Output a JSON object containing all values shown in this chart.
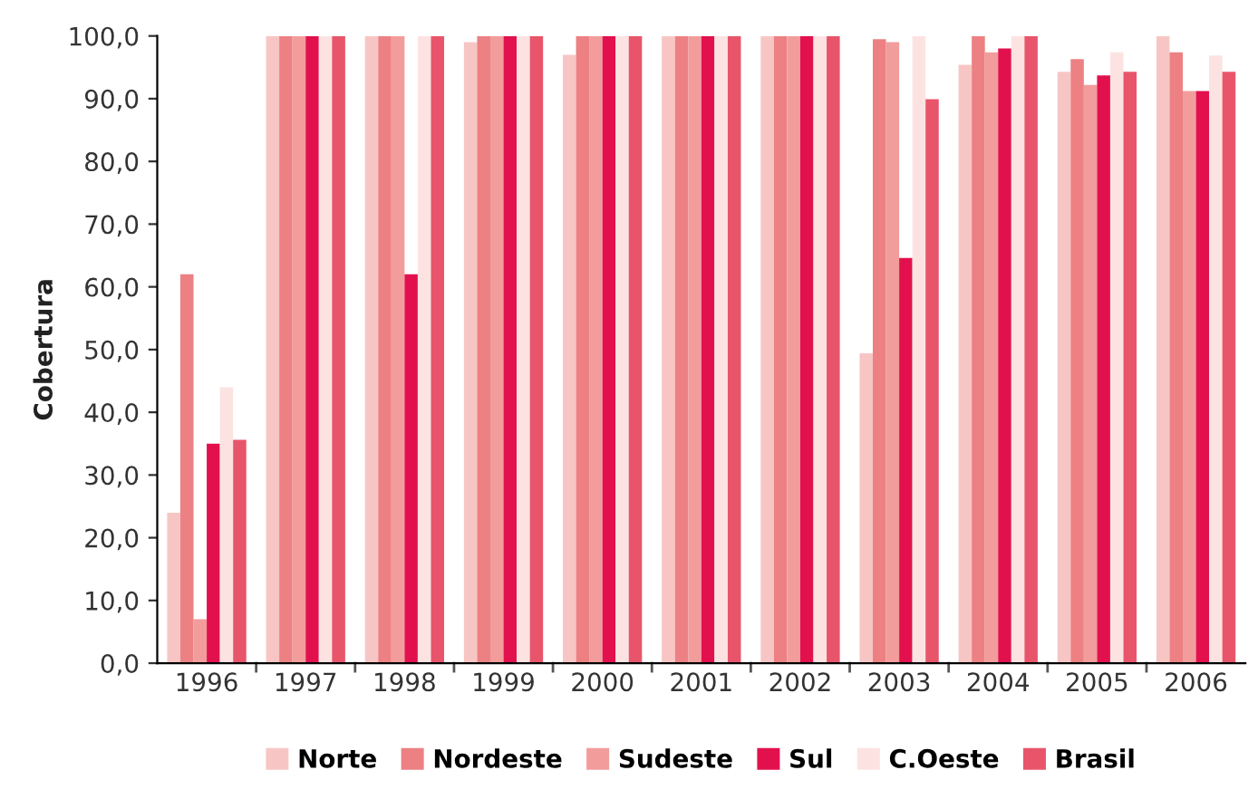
{
  "chart_data": {
    "type": "bar",
    "ylabel": "Cobertura",
    "categories": [
      "1996",
      "1997",
      "1998",
      "1999",
      "2000",
      "2001",
      "2002",
      "2003",
      "2004",
      "2005",
      "2006"
    ],
    "series": [
      {
        "name": "Norte",
        "color": "#f7c6c4",
        "values": [
          24,
          100,
          100,
          99,
          97,
          100,
          100,
          49.4,
          95.4,
          94.3,
          100
        ]
      },
      {
        "name": "Nordeste",
        "color": "#ec8083",
        "values": [
          62,
          100,
          100,
          100,
          100,
          100,
          100,
          99.5,
          100,
          96.3,
          97.4
        ]
      },
      {
        "name": "Sudeste",
        "color": "#f29c9c",
        "values": [
          7,
          100,
          100,
          100,
          100,
          100,
          100,
          99,
          97.4,
          92.2,
          91.2
        ]
      },
      {
        "name": "Sul",
        "color": "#e2114e",
        "values": [
          35,
          100,
          62,
          100,
          100,
          100,
          100,
          64.6,
          98,
          93.7,
          91.2
        ]
      },
      {
        "name": "C.Oeste",
        "color": "#fce3e2",
        "values": [
          44,
          100,
          100,
          100,
          100,
          100,
          100,
          100,
          100,
          97.4,
          96.9
        ]
      },
      {
        "name": "Brasil",
        "color": "#e8556b",
        "values": [
          35.6,
          100,
          100,
          100,
          100,
          100,
          100,
          89.9,
          100,
          94.3,
          94.3
        ]
      }
    ],
    "ylim": [
      0,
      100
    ],
    "yticks": [
      {
        "value": 0,
        "label": "0,0"
      },
      {
        "value": 10,
        "label": "10,0"
      },
      {
        "value": 20,
        "label": "20,0"
      },
      {
        "value": 30,
        "label": "30,0"
      },
      {
        "value": 40,
        "label": "40,0"
      },
      {
        "value": 50,
        "label": "50,0"
      },
      {
        "value": 60,
        "label": "60,0"
      },
      {
        "value": 70,
        "label": "70,0"
      },
      {
        "value": 80,
        "label": "80,0"
      },
      {
        "value": 90,
        "label": "90,0"
      },
      {
        "value": 100,
        "label": "100,0"
      }
    ],
    "grid": false,
    "legend": "bottom"
  }
}
